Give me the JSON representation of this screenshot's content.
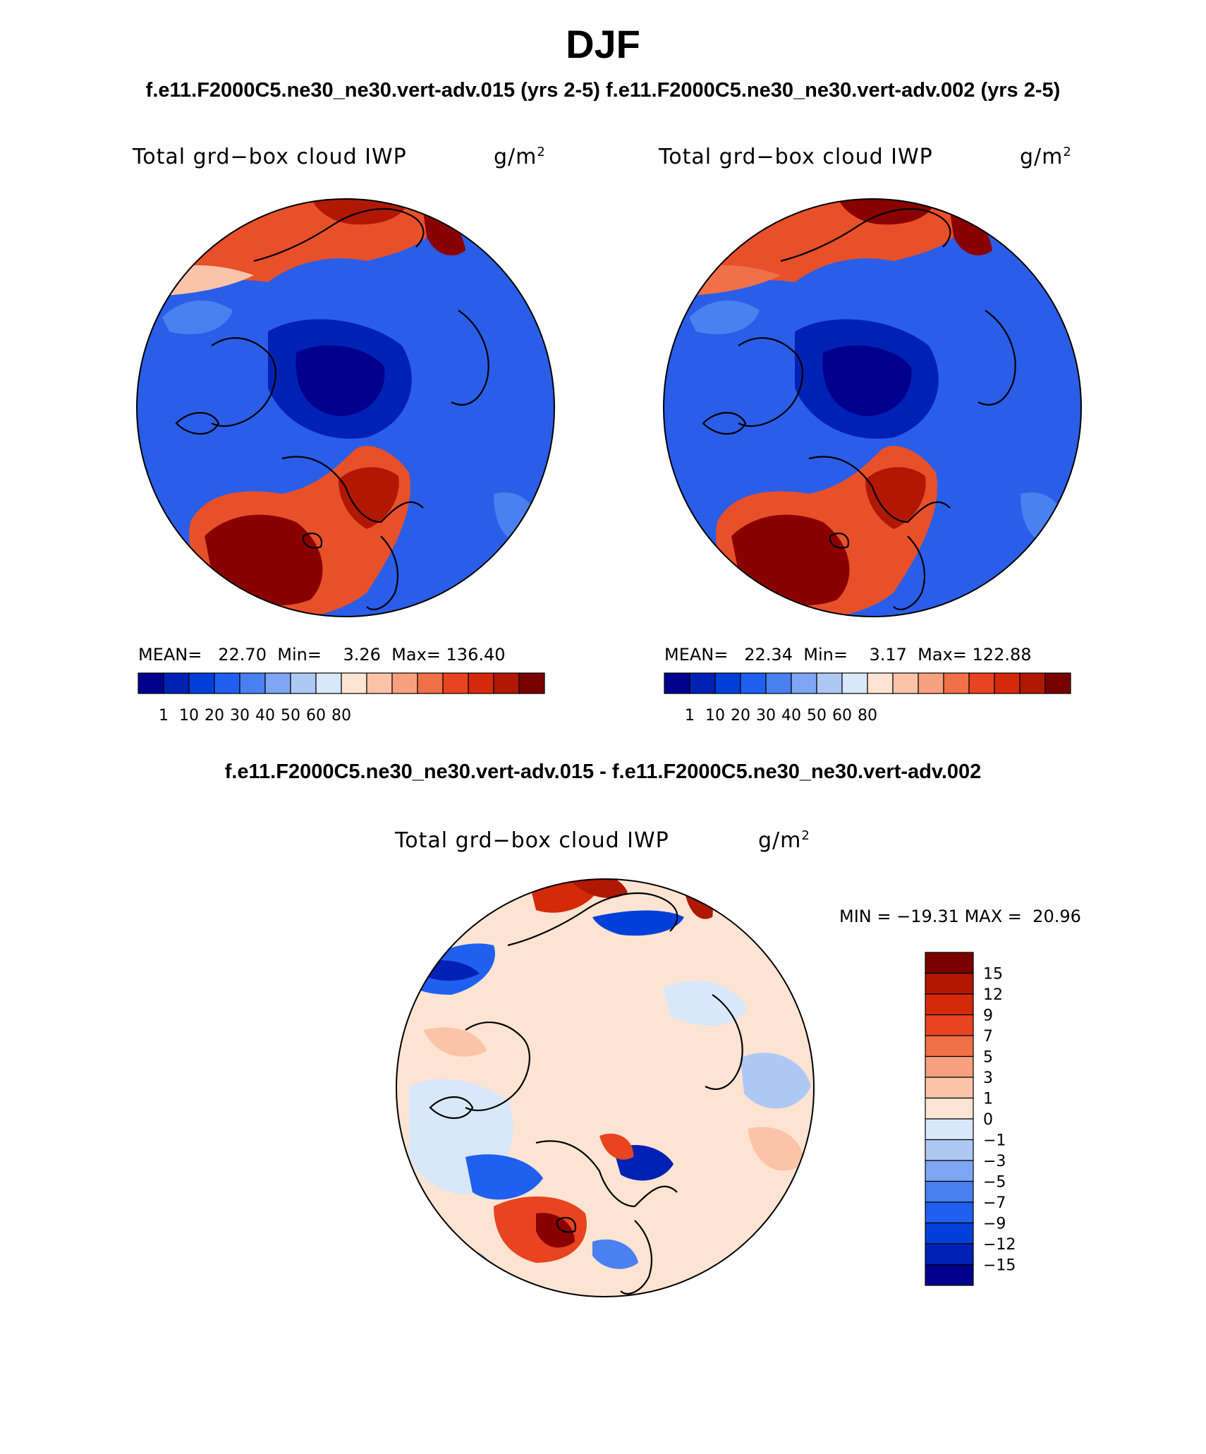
{
  "main_title": "DJF",
  "case_titles": "f.e11.F2000C5.ne30_ne30.vert-adv.015 (yrs 2-5)  f.e11.F2000C5.ne30_ne30.vert-adv.002 (yrs 2-5)",
  "diff_title": "f.e11.F2000C5.ne30_ne30.vert-adv.015 - f.e11.F2000C5.ne30_ne30.vert-adv.002",
  "panels": [
    {
      "variable": "Total grd−box cloud IWP",
      "units_base": "g/m",
      "units_exp": "2",
      "mean_label": "MEAN=",
      "mean": "22.70",
      "min_label": "Min=",
      "min": "3.26",
      "max_label": "Max=",
      "max": "136.40"
    },
    {
      "variable": "Total grd−box cloud IWP",
      "units_base": "g/m",
      "units_exp": "2",
      "mean_label": "MEAN=",
      "mean": "22.34",
      "min_label": "Min=",
      "min": "3.17",
      "max_label": "Max=",
      "max": "122.88"
    }
  ],
  "diff_panel": {
    "variable": "Total grd−box cloud IWP",
    "units_base": "g/m",
    "units_exp": "2",
    "min_label": "MIN =",
    "min": "−19.31",
    "max_label": "MAX =",
    "max": "20.96"
  },
  "colorbar_horizontal": {
    "colors": [
      "#00008c",
      "#0022b4",
      "#0040d8",
      "#2060f0",
      "#4a80f0",
      "#7ea6f2",
      "#aec8f6",
      "#d8e8fa",
      "#fde4d2",
      "#fbc4a8",
      "#f7a080",
      "#f07048",
      "#e84420",
      "#d42a0a",
      "#b01804",
      "#7a0000"
    ],
    "labels": [
      "1",
      "10",
      "20",
      "30",
      "40",
      "50",
      "60",
      "80"
    ]
  },
  "colorbar_vertical": {
    "colors": [
      "#7a0000",
      "#b01804",
      "#d42a0a",
      "#e84420",
      "#f07048",
      "#f7a080",
      "#fbc4a8",
      "#fde4d2",
      "#d8e8fa",
      "#aec8f6",
      "#7ea6f2",
      "#4a80f0",
      "#2060f0",
      "#0040d8",
      "#0022b4",
      "#00008c"
    ],
    "labels": [
      "15",
      "12",
      "9",
      "7",
      "5",
      "3",
      "1",
      "0",
      "−1",
      "−3",
      "−5",
      "−7",
      "−9",
      "−12",
      "−15"
    ]
  }
}
